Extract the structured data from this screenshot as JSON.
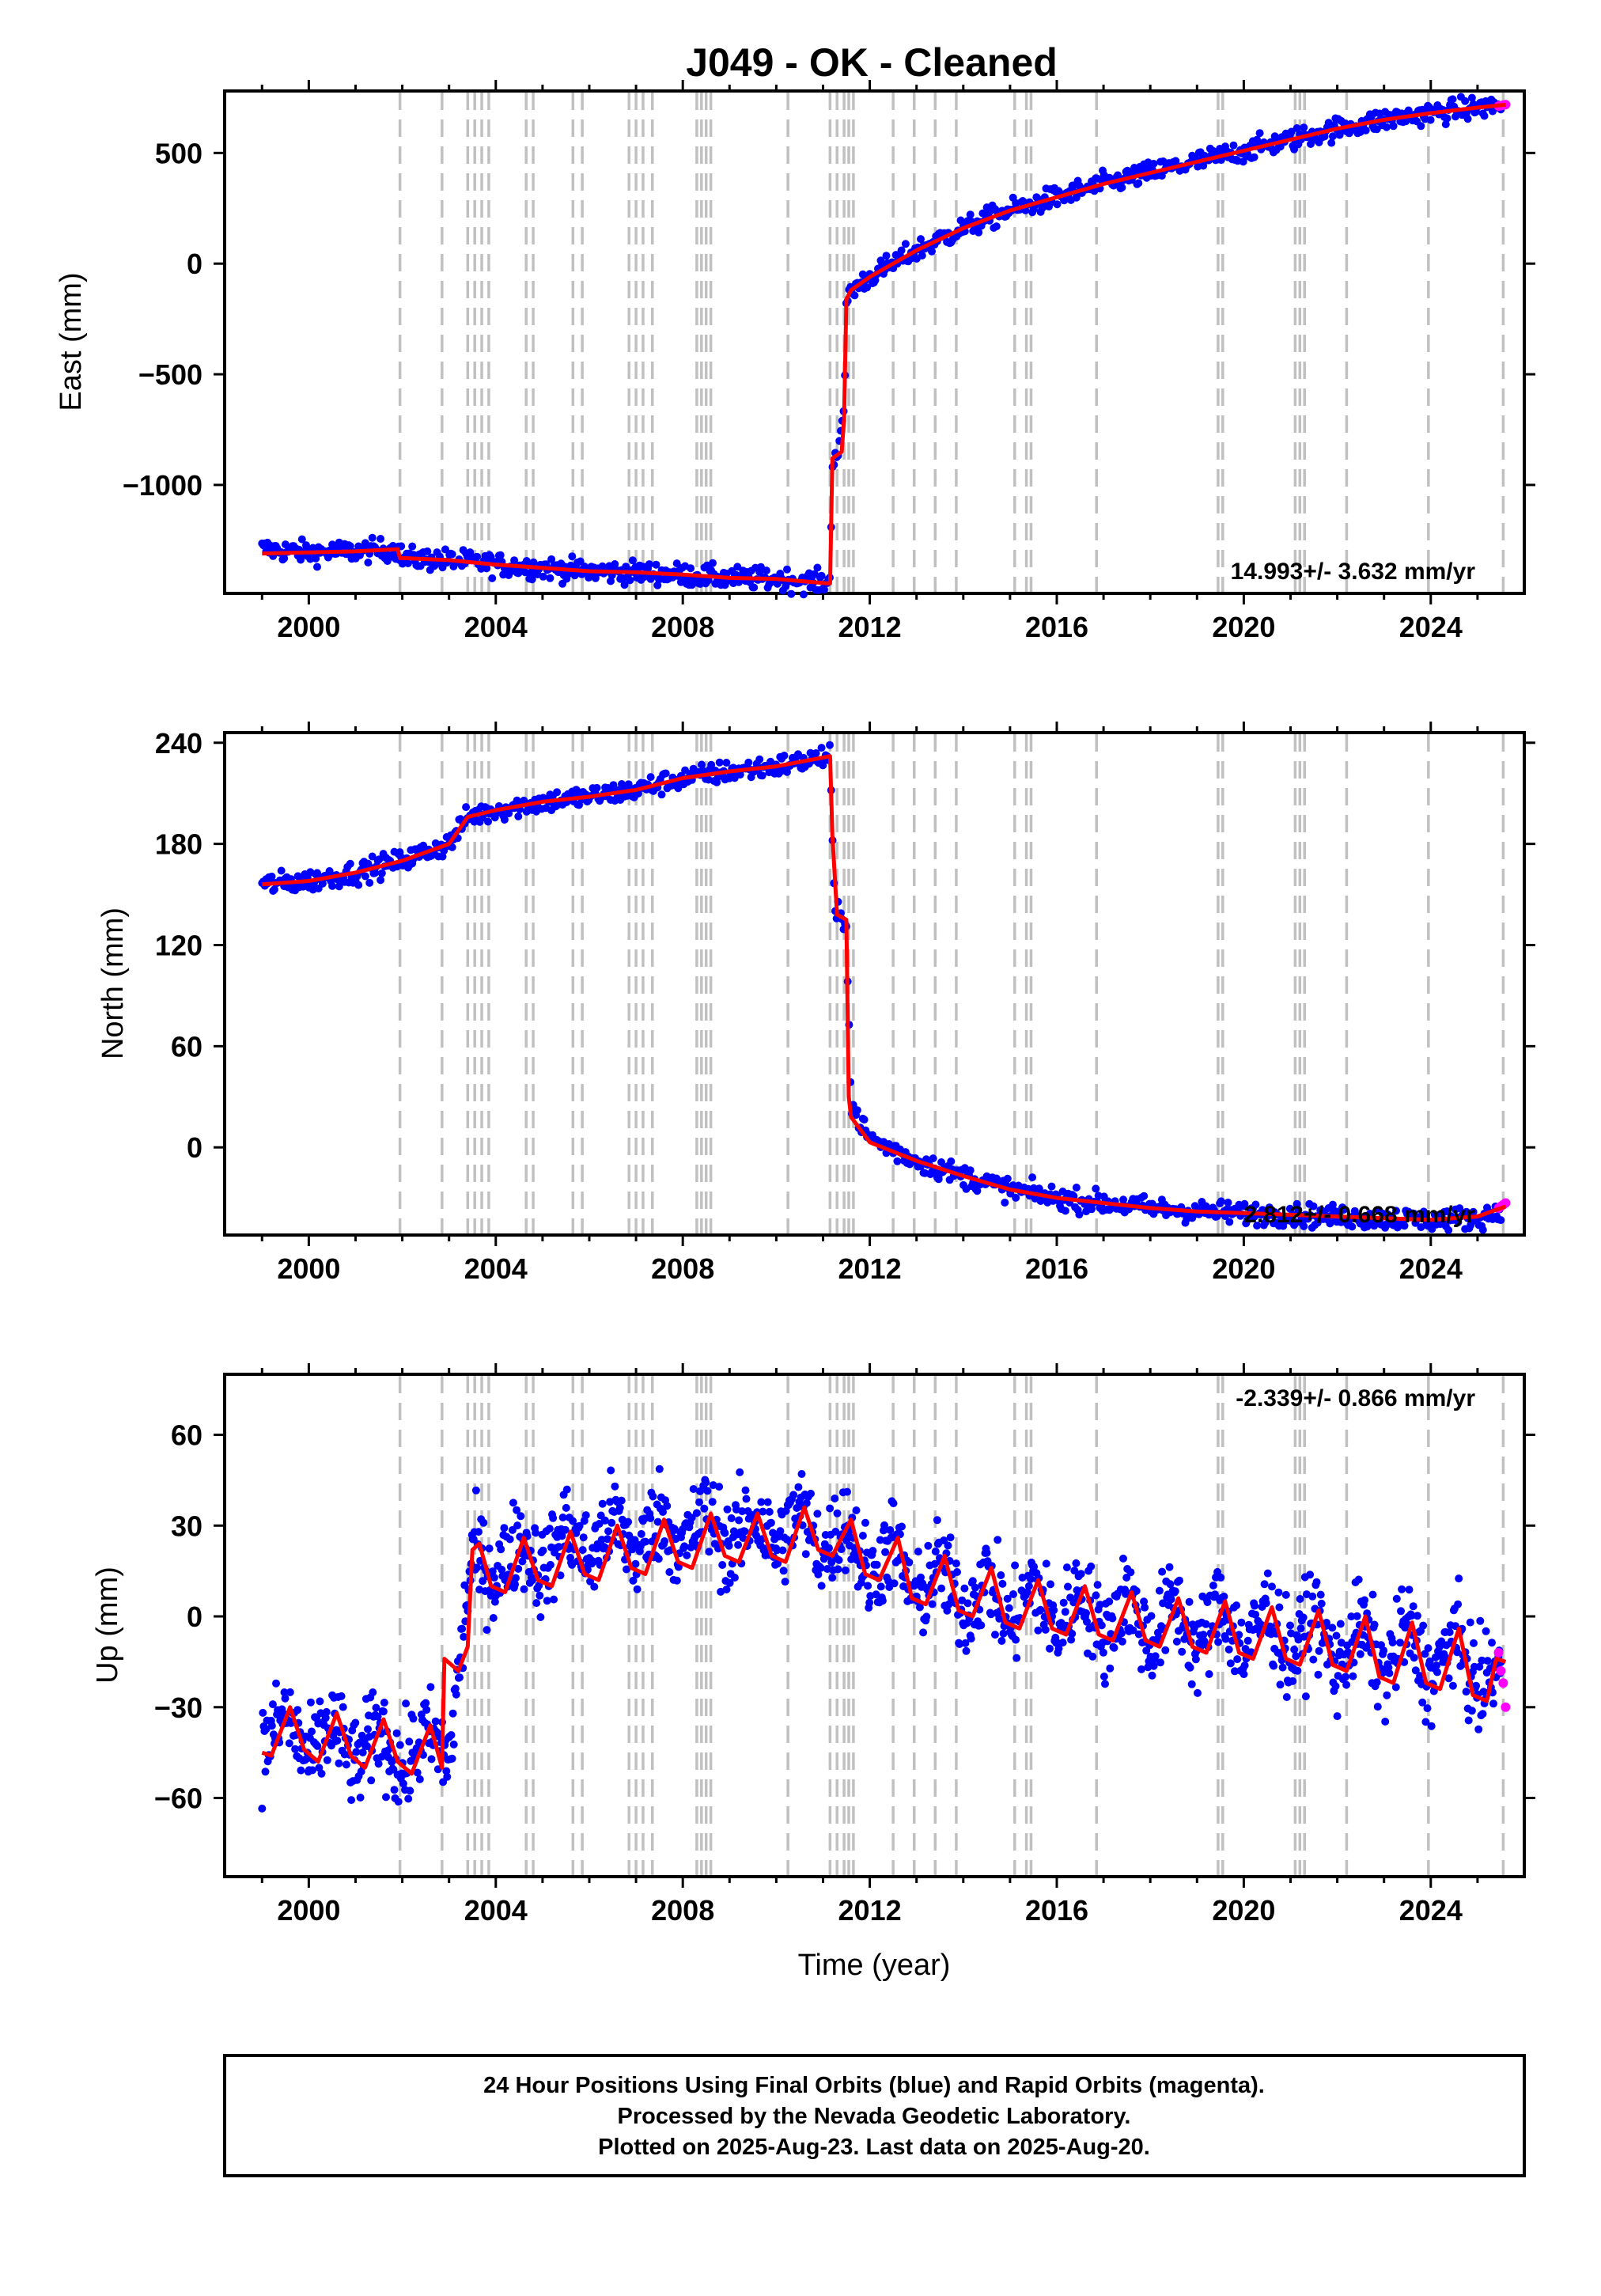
{
  "title": "J049  - OK - Cleaned",
  "xlabel": "Time (year)",
  "footer": {
    "lines": [
      "24 Hour Positions Using Final Orbits (blue) and Rapid Orbits (magenta).",
      "Processed by the Nevada Geodetic Laboratory.",
      "Plotted on 2025-Aug-23. Last data on 2025-Aug-20."
    ]
  },
  "colors": {
    "final_orbits": "#0000ff",
    "rapid_orbits": "#ff00ff",
    "model": "#ff0000",
    "event_lines": "#c0c0c0"
  },
  "chart_data": [
    {
      "type": "scatter",
      "component": "East",
      "ylabel": "East (mm)",
      "rate_text": "14.993+/- 3.632 mm/yr",
      "xlim": [
        1998.2,
        2026.0
      ],
      "ylim": [
        -1490,
        780
      ],
      "xticks": [
        2000,
        2004,
        2008,
        2012,
        2016,
        2020,
        2024
      ],
      "yticks": [
        -1000,
        -500,
        0,
        500
      ],
      "series": [
        {
          "role": "final",
          "x": [
            1999.0,
            2000.0,
            2001.0,
            2001.9,
            2002.0,
            2003.0,
            2004.0,
            2005.0,
            2006.0,
            2007.0,
            2008.0,
            2009.0,
            2010.0,
            2011.0,
            2011.15,
            2011.2,
            2011.25,
            2011.3,
            2011.45,
            2011.5,
            2011.6,
            2012.0,
            2013.0,
            2014.0,
            2015.0,
            2016.0,
            2017.0,
            2018.0,
            2019.0,
            2020.0,
            2021.0,
            2022.0,
            2023.0,
            2024.0,
            2025.0,
            2025.5
          ],
          "y": [
            -1290,
            -1305,
            -1300,
            -1290,
            -1330,
            -1340,
            -1360,
            -1375,
            -1390,
            -1395,
            -1405,
            -1420,
            -1425,
            -1440,
            -1440,
            -880,
            -870,
            -860,
            -700,
            -160,
            -120,
            -60,
            60,
            160,
            240,
            300,
            360,
            410,
            460,
            510,
            560,
            610,
            650,
            680,
            705,
            715
          ]
        },
        {
          "role": "rapid",
          "x": [
            2025.45,
            2025.5,
            2025.55,
            2025.6
          ],
          "y": [
            712,
            714,
            716,
            718
          ]
        }
      ],
      "model": {
        "x": [
          1999.0,
          2000.0,
          2001.0,
          2001.9,
          2001.95,
          2003.0,
          2004.0,
          2005.0,
          2006.0,
          2007.0,
          2008.0,
          2009.0,
          2010.0,
          2011.1,
          2011.15,
          2011.2,
          2011.4,
          2011.45,
          2011.5,
          2011.6,
          2012.0,
          2013.0,
          2014.0,
          2015.0,
          2016.0,
          2017.0,
          2018.0,
          2019.0,
          2020.0,
          2021.0,
          2022.0,
          2023.0,
          2024.0,
          2025.0,
          2025.6
        ],
        "y": [
          -1310,
          -1305,
          -1300,
          -1290,
          -1330,
          -1340,
          -1360,
          -1375,
          -1390,
          -1395,
          -1405,
          -1420,
          -1425,
          -1445,
          -1445,
          -880,
          -850,
          -700,
          -160,
          -120,
          -60,
          60,
          160,
          240,
          300,
          360,
          410,
          460,
          510,
          560,
          610,
          650,
          680,
          705,
          718
        ]
      }
    },
    {
      "type": "scatter",
      "component": "North",
      "ylabel": "North (mm)",
      "rate_text": "2.812+/- 0.668 mm/yr",
      "xlim": [
        1998.2,
        2026.0
      ],
      "ylim": [
        -52,
        246
      ],
      "xticks": [
        2000,
        2004,
        2008,
        2012,
        2016,
        2020,
        2024
      ],
      "yticks": [
        0,
        60,
        120,
        180,
        240
      ],
      "series": [
        {
          "role": "final",
          "x": [
            1999.0,
            2000.0,
            2001.0,
            2002.0,
            2003.0,
            2003.4,
            2004.0,
            2005.0,
            2006.0,
            2007.0,
            2008.0,
            2009.0,
            2010.0,
            2011.0,
            2011.15,
            2011.25,
            2011.5,
            2011.6,
            2012.0,
            2013.0,
            2014.0,
            2015.0,
            2016.0,
            2017.0,
            2018.0,
            2019.0,
            2020.0,
            2021.0,
            2022.0,
            2023.0,
            2024.0,
            2025.0,
            2025.5
          ],
          "y": [
            156,
            158,
            163,
            170,
            180,
            196,
            200,
            205,
            208,
            212,
            219,
            223,
            226,
            231,
            232,
            138,
            135,
            25,
            5,
            -8,
            -17,
            -25,
            -30,
            -33,
            -36,
            -38,
            -39,
            -40,
            -41,
            -42,
            -43,
            -42,
            -38
          ]
        },
        {
          "role": "rapid",
          "x": [
            2025.45,
            2025.5,
            2025.55,
            2025.6
          ],
          "y": [
            -36,
            -35,
            -34,
            -33
          ]
        }
      ],
      "model": {
        "x": [
          1999.0,
          2000.0,
          2001.0,
          2002.0,
          2003.0,
          2003.4,
          2004.0,
          2005.0,
          2006.0,
          2007.0,
          2008.0,
          2009.0,
          2010.0,
          2011.15,
          2011.2,
          2011.3,
          2011.5,
          2011.55,
          2011.6,
          2012.0,
          2013.0,
          2014.0,
          2015.0,
          2016.0,
          2017.0,
          2018.0,
          2019.0,
          2020.0,
          2021.0,
          2022.0,
          2023.0,
          2024.0,
          2025.0,
          2025.6
        ],
        "y": [
          156,
          158,
          163,
          170,
          180,
          196,
          200,
          205,
          208,
          212,
          219,
          223,
          226,
          232,
          185,
          138,
          135,
          30,
          18,
          3,
          -8,
          -17,
          -25,
          -30,
          -33,
          -36,
          -38,
          -39,
          -40,
          -41,
          -42,
          -43,
          -41,
          -35
        ]
      }
    },
    {
      "type": "scatter",
      "component": "Up",
      "ylabel": "Up (mm)",
      "rate_text": "-2.339+/- 0.866 mm/yr",
      "xlim": [
        1998.2,
        2026.0
      ],
      "ylim": [
        -86,
        80
      ],
      "xticks": [
        2000,
        2004,
        2008,
        2012,
        2016,
        2020,
        2024
      ],
      "yticks": [
        -60,
        -30,
        0,
        30,
        60
      ],
      "series": [
        {
          "role": "final",
          "x": [
            1999.0,
            1999.5,
            2000.0,
            2000.5,
            2001.0,
            2001.5,
            2002.0,
            2002.5,
            2003.0,
            2003.5,
            2004.0,
            2004.5,
            2005.0,
            2005.5,
            2006.0,
            2006.5,
            2007.0,
            2007.5,
            2008.0,
            2008.5,
            2009.0,
            2009.5,
            2010.0,
            2010.5,
            2011.0,
            2011.5,
            2012.0,
            2012.5,
            2013.0,
            2013.5,
            2014.0,
            2014.5,
            2015.0,
            2015.5,
            2016.0,
            2016.5,
            2017.0,
            2017.5,
            2018.0,
            2018.5,
            2019.0,
            2019.5,
            2020.0,
            2020.5,
            2021.0,
            2021.5,
            2022.0,
            2022.5,
            2023.0,
            2023.5,
            2024.0,
            2024.5,
            2025.0,
            2025.5
          ],
          "y": [
            -45,
            -32,
            -48,
            -35,
            -50,
            -36,
            -52,
            -38,
            -47,
            22,
            12,
            26,
            14,
            30,
            18,
            33,
            20,
            34,
            22,
            35,
            22,
            34,
            22,
            36,
            20,
            32,
            12,
            25,
            4,
            18,
            0,
            14,
            -4,
            12,
            -6,
            10,
            -8,
            8,
            -10,
            6,
            -12,
            5,
            -13,
            3,
            -15,
            2,
            -18,
            -2,
            -20,
            -3,
            -22,
            -5,
            -25,
            -15
          ]
        },
        {
          "role": "rapid",
          "x": [
            2025.45,
            2025.5,
            2025.55,
            2025.6
          ],
          "y": [
            -12,
            -18,
            -22,
            -30
          ]
        }
      ],
      "model": {
        "x": [
          1999.0,
          1999.2,
          1999.6,
          1999.9,
          2000.2,
          2000.6,
          2000.9,
          2001.2,
          2001.6,
          2001.9,
          2002.2,
          2002.6,
          2002.85,
          2002.9,
          2003.2,
          2003.4,
          2003.5,
          2003.65,
          2003.9,
          2004.2,
          2004.6,
          2004.9,
          2005.2,
          2005.6,
          2005.9,
          2006.2,
          2006.6,
          2006.9,
          2007.2,
          2007.6,
          2007.9,
          2008.2,
          2008.6,
          2008.9,
          2009.2,
          2009.6,
          2009.9,
          2010.2,
          2010.6,
          2010.9,
          2011.2,
          2011.6,
          2011.9,
          2012.2,
          2012.6,
          2012.9,
          2013.2,
          2013.6,
          2013.9,
          2014.2,
          2014.6,
          2014.9,
          2015.2,
          2015.6,
          2015.9,
          2016.2,
          2016.6,
          2016.9,
          2017.2,
          2017.6,
          2017.9,
          2018.2,
          2018.6,
          2018.9,
          2019.2,
          2019.6,
          2019.9,
          2020.2,
          2020.6,
          2020.9,
          2021.2,
          2021.6,
          2021.9,
          2022.2,
          2022.6,
          2022.9,
          2023.2,
          2023.6,
          2023.9,
          2024.2,
          2024.6,
          2024.9,
          2025.2,
          2025.4,
          2025.6
        ],
        "y": [
          -45,
          -46,
          -30,
          -44,
          -48,
          -32,
          -46,
          -50,
          -34,
          -48,
          -52,
          -36,
          -50,
          -14,
          -18,
          -10,
          22,
          24,
          10,
          8,
          26,
          12,
          10,
          28,
          14,
          12,
          30,
          16,
          14,
          32,
          18,
          16,
          34,
          20,
          18,
          34,
          20,
          18,
          36,
          22,
          20,
          32,
          14,
          12,
          26,
          6,
          4,
          20,
          2,
          0,
          16,
          -2,
          -4,
          12,
          -4,
          -6,
          10,
          -6,
          -8,
          8,
          -8,
          -10,
          6,
          -10,
          -12,
          5,
          -12,
          -14,
          3,
          -14,
          -16,
          2,
          -16,
          -18,
          0,
          -20,
          -22,
          -2,
          -22,
          -24,
          -4,
          -26,
          -28,
          -14,
          -15
        ]
      }
    }
  ]
}
